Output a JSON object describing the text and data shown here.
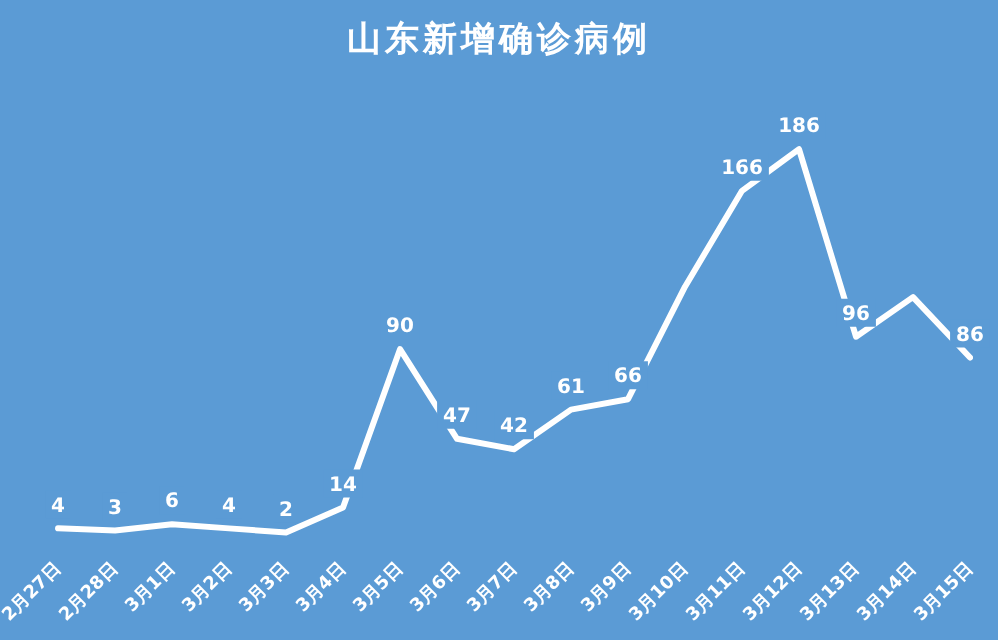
{
  "chart_data": {
    "type": "line",
    "title": "山东新增确诊病例",
    "categories": [
      "2月27日",
      "2月28日",
      "3月1日",
      "3月2日",
      "3月3日",
      "3月4日",
      "3月5日",
      "3月6日",
      "3月7日",
      "3月8日",
      "3月9日",
      "3月10日",
      "3月11日",
      "3月12日",
      "3月13日",
      "3月14日",
      "3月15日"
    ],
    "series": [
      {
        "color": "#ffffff",
        "values": [
          4,
          3,
          6,
          4,
          2,
          14,
          90,
          47,
          42,
          61,
          66,
          120,
          166,
          186,
          96,
          115,
          86
        ],
        "value_labels": [
          "4",
          "3",
          "6",
          "4",
          "2",
          "14",
          "90",
          "47",
          "42",
          "61",
          "66",
          null,
          "166",
          "186",
          "96",
          null,
          "86"
        ]
      }
    ],
    "marker": "none",
    "line_style": "solid",
    "grid": false,
    "legend": false,
    "tick_labels": "x"
  }
}
